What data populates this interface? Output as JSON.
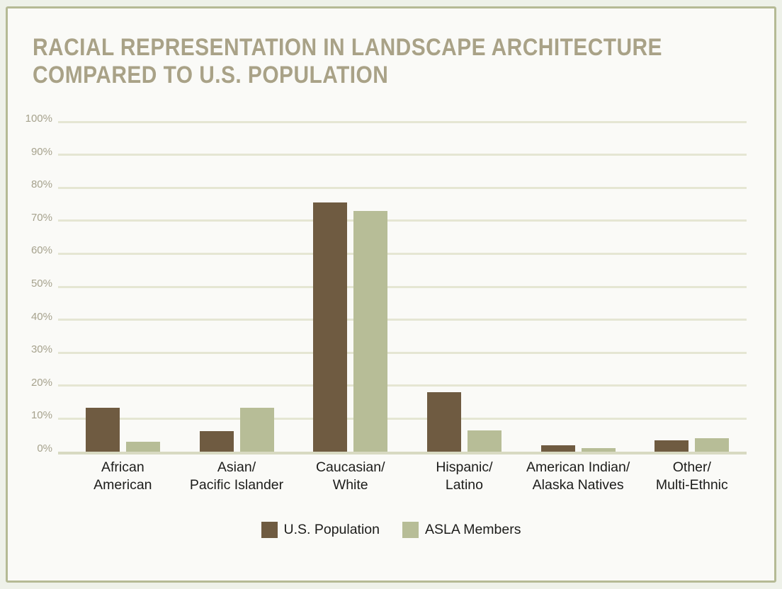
{
  "title": {
    "line1": "RACIAL REPRESENTATION IN LANDSCAPE ARCHITECTURE",
    "line2": "COMPARED TO U.S. POPULATION"
  },
  "colors": {
    "page_bg": "#eef1e9",
    "frame_border": "#b5ba95",
    "frame_bg": "#fafaf7",
    "gridline": "#e5e6d3",
    "baseline": "#d8dac2",
    "title_text": "#a9a287",
    "axis_text": "#a6a28d",
    "label_text": "#1c1c1a",
    "us_population": "#6f5b41",
    "asla_members": "#b7bd97"
  },
  "chart_data": {
    "type": "bar",
    "title": "Racial Representation in Landscape Architecture Compared to U.S. Population",
    "categories": [
      "African American",
      "Asian/Pacific Islander",
      "Caucasian/White",
      "Hispanic/Latino",
      "American Indian/Alaska Natives",
      "Other/Multi-Ethnic"
    ],
    "category_lines": [
      [
        "African",
        "American"
      ],
      [
        "Asian/",
        "Pacific Islander"
      ],
      [
        "Caucasian/",
        "White"
      ],
      [
        "Hispanic/",
        "Latino"
      ],
      [
        "American Indian/",
        "Alaska Natives"
      ],
      [
        "Other/",
        "Multi-Ethnic"
      ]
    ],
    "series": [
      {
        "name": "U.S. Population",
        "color": "#6f5b41",
        "values": [
          13.4,
          6.2,
          75.5,
          18,
          2,
          3.5
        ]
      },
      {
        "name": "ASLA Members",
        "color": "#b7bd97",
        "values": [
          3,
          13.2,
          73,
          6.5,
          1,
          4
        ]
      }
    ],
    "xlabel": "",
    "ylabel": "",
    "ylim": [
      0,
      100
    ],
    "ytick_labels": [
      "0%",
      "10%",
      "20%",
      "30%",
      "40%",
      "50%",
      "60%",
      "70%",
      "80%",
      "90%",
      "100%"
    ],
    "grid": true,
    "legend_position": "bottom"
  }
}
